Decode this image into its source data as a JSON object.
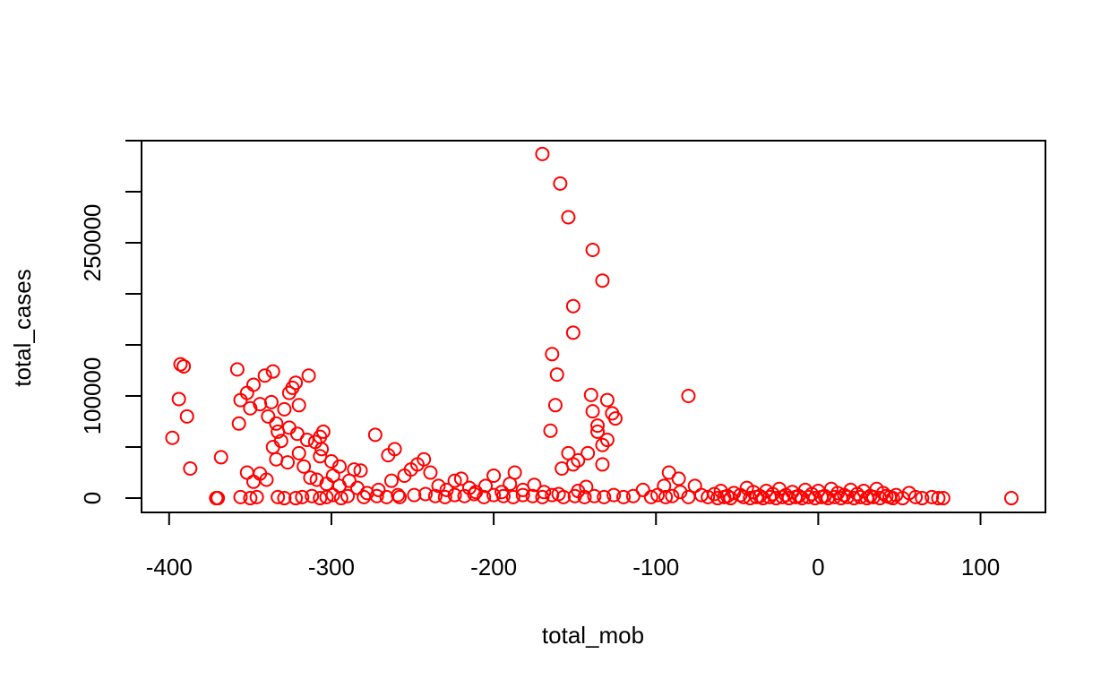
{
  "chart_data": {
    "type": "scatter",
    "title": "",
    "xlabel": "total_mob",
    "ylabel": "total_cases",
    "xlim": [
      -417,
      140
    ],
    "ylim": [
      -14000,
      350000
    ],
    "x_ticks": [
      -400,
      -300,
      -200,
      -100,
      0,
      100
    ],
    "x_tick_labels": [
      "-400",
      "-300",
      "-200",
      "-100",
      "0",
      "100"
    ],
    "y_ticks": [
      0,
      50000,
      100000,
      150000,
      200000,
      250000,
      300000,
      350000
    ],
    "y_tick_labels": [
      "0",
      "",
      "100000",
      "",
      "",
      "250000",
      "",
      ""
    ],
    "grid": false,
    "legend": "none",
    "marker": "open-circle",
    "point_color": "#ff0000",
    "points": [
      [
        -170,
        337000
      ],
      [
        -159,
        308000
      ],
      [
        -154,
        275000
      ],
      [
        -139,
        243000
      ],
      [
        -133,
        213000
      ],
      [
        -151,
        188000
      ],
      [
        -151,
        162000
      ],
      [
        -164,
        141000
      ],
      [
        -161,
        121000
      ],
      [
        -140,
        101000
      ],
      [
        -130,
        96000
      ],
      [
        -162,
        91000
      ],
      [
        -139,
        85000
      ],
      [
        -127,
        83000
      ],
      [
        -125,
        78000
      ],
      [
        -136,
        71000
      ],
      [
        -136,
        65000
      ],
      [
        -130,
        57000
      ],
      [
        -165,
        66000
      ],
      [
        -133,
        52000
      ],
      [
        -154,
        44000
      ],
      [
        -142,
        44000
      ],
      [
        -148,
        37000
      ],
      [
        -151,
        33000
      ],
      [
        -133,
        33000
      ],
      [
        -158,
        29000
      ],
      [
        -80,
        100000
      ],
      [
        -92,
        25000
      ],
      [
        -86,
        19000
      ],
      [
        -95,
        12000
      ],
      [
        -393,
        131000
      ],
      [
        -391,
        129000
      ],
      [
        -394,
        97000
      ],
      [
        -389,
        80000
      ],
      [
        -398,
        59000
      ],
      [
        -387,
        29000
      ],
      [
        -371,
        0
      ],
      [
        -370,
        0
      ],
      [
        -368,
        40000
      ],
      [
        -358,
        126000
      ],
      [
        -356,
        96000
      ],
      [
        -352,
        103000
      ],
      [
        -350,
        88000
      ],
      [
        -348,
        111000
      ],
      [
        -344,
        92000
      ],
      [
        -341,
        120000
      ],
      [
        -339,
        80000
      ],
      [
        -337,
        94000
      ],
      [
        -336,
        124000
      ],
      [
        -334,
        73000
      ],
      [
        -333,
        65000
      ],
      [
        -331,
        56000
      ],
      [
        -336,
        50000
      ],
      [
        -329,
        87000
      ],
      [
        -326,
        103000
      ],
      [
        -324,
        108000
      ],
      [
        -322,
        113000
      ],
      [
        -320,
        91000
      ],
      [
        -314,
        120000
      ],
      [
        -326,
        69000
      ],
      [
        -321,
        63000
      ],
      [
        -315,
        57000
      ],
      [
        -310,
        55000
      ],
      [
        -307,
        60000
      ],
      [
        -305,
        65000
      ],
      [
        -306,
        48000
      ],
      [
        -307,
        41000
      ],
      [
        -300,
        36000
      ],
      [
        -295,
        31000
      ],
      [
        -286,
        28000
      ],
      [
        -282,
        27000
      ],
      [
        -273,
        62000
      ],
      [
        -265,
        42000
      ],
      [
        -261,
        48000
      ],
      [
        -357,
        73000
      ],
      [
        -352,
        25000
      ],
      [
        -348,
        16000
      ],
      [
        -344,
        24000
      ],
      [
        -340,
        18000
      ],
      [
        -334,
        38000
      ],
      [
        -327,
        35000
      ],
      [
        -320,
        44000
      ],
      [
        -317,
        31000
      ],
      [
        -313,
        20000
      ],
      [
        -309,
        18000
      ],
      [
        -303,
        14000
      ],
      [
        -299,
        22000
      ],
      [
        -295,
        12000
      ],
      [
        -289,
        17000
      ],
      [
        -284,
        10000
      ],
      [
        -278,
        5000
      ],
      [
        -271,
        8000
      ],
      [
        -263,
        17000
      ],
      [
        -259,
        3000
      ],
      [
        -255,
        22000
      ],
      [
        -251,
        28000
      ],
      [
        -247,
        33000
      ],
      [
        -243,
        38000
      ],
      [
        -239,
        25000
      ],
      [
        -234,
        12000
      ],
      [
        -229,
        8000
      ],
      [
        -224,
        17000
      ],
      [
        -220,
        19000
      ],
      [
        -215,
        10000
      ],
      [
        -211,
        6000
      ],
      [
        -205,
        12000
      ],
      [
        -200,
        22000
      ],
      [
        -195,
        6000
      ],
      [
        -190,
        14000
      ],
      [
        -187,
        25000
      ],
      [
        -182,
        8000
      ],
      [
        -175,
        13000
      ],
      [
        -169,
        6000
      ],
      [
        -160,
        4000
      ],
      [
        -148,
        7000
      ],
      [
        -143,
        11000
      ],
      [
        -356,
        1000
      ],
      [
        -350,
        0
      ],
      [
        -346,
        1000
      ],
      [
        -333,
        1000
      ],
      [
        -329,
        0
      ],
      [
        -322,
        0
      ],
      [
        -318,
        1000
      ],
      [
        -312,
        2000
      ],
      [
        -307,
        0
      ],
      [
        -303,
        1000
      ],
      [
        -299,
        3000
      ],
      [
        -294,
        0
      ],
      [
        -290,
        2000
      ],
      [
        -280,
        1000
      ],
      [
        -272,
        2000
      ],
      [
        -266,
        1000
      ],
      [
        -258,
        1000
      ],
      [
        -249,
        3000
      ],
      [
        -242,
        4000
      ],
      [
        -236,
        2000
      ],
      [
        -230,
        1000
      ],
      [
        -224,
        3000
      ],
      [
        -218,
        2000
      ],
      [
        -212,
        4000
      ],
      [
        -206,
        1000
      ],
      [
        -200,
        3000
      ],
      [
        -194,
        2000
      ],
      [
        -188,
        1000
      ],
      [
        -182,
        3000
      ],
      [
        -176,
        2000
      ],
      [
        -170,
        1000
      ],
      [
        -164,
        3000
      ],
      [
        -157,
        1000
      ],
      [
        -150,
        2000
      ],
      [
        -144,
        1000
      ],
      [
        -138,
        2000
      ],
      [
        -132,
        1000
      ],
      [
        -126,
        3000
      ],
      [
        -120,
        1000
      ],
      [
        -114,
        2000
      ],
      [
        -108,
        8000
      ],
      [
        -103,
        1000
      ],
      [
        -99,
        3000
      ],
      [
        -94,
        1000
      ],
      [
        -90,
        2000
      ],
      [
        -85,
        6000
      ],
      [
        -80,
        1000
      ],
      [
        -76,
        12000
      ],
      [
        -72,
        3000
      ],
      [
        -68,
        1000
      ],
      [
        -64,
        4000
      ],
      [
        -60,
        7000
      ],
      [
        -56,
        2000
      ],
      [
        -52,
        5000
      ],
      [
        -48,
        3000
      ],
      [
        -44,
        10000
      ],
      [
        -40,
        6000
      ],
      [
        -36,
        2000
      ],
      [
        -32,
        7000
      ],
      [
        -28,
        4000
      ],
      [
        -24,
        9000
      ],
      [
        -20,
        3000
      ],
      [
        -16,
        6000
      ],
      [
        -12,
        2000
      ],
      [
        -8,
        8000
      ],
      [
        -4,
        4000
      ],
      [
        0,
        7000
      ],
      [
        4,
        2000
      ],
      [
        8,
        9000
      ],
      [
        12,
        5000
      ],
      [
        16,
        3000
      ],
      [
        20,
        8000
      ],
      [
        24,
        4000
      ],
      [
        28,
        7000
      ],
      [
        32,
        2000
      ],
      [
        36,
        9000
      ],
      [
        40,
        5000
      ],
      [
        44,
        1000
      ],
      [
        48,
        3000
      ],
      [
        52,
        0
      ],
      [
        56,
        5000
      ],
      [
        60,
        1000
      ],
      [
        64,
        0
      ],
      [
        70,
        1000
      ],
      [
        74,
        0
      ],
      [
        77,
        0
      ],
      [
        119,
        0
      ],
      [
        -62,
        0
      ],
      [
        -58,
        1000
      ],
      [
        -54,
        0
      ],
      [
        -46,
        1000
      ],
      [
        -42,
        0
      ],
      [
        -38,
        1000
      ],
      [
        -34,
        0
      ],
      [
        -30,
        1000
      ],
      [
        -26,
        0
      ],
      [
        -22,
        1000
      ],
      [
        -18,
        0
      ],
      [
        -14,
        1000
      ],
      [
        -10,
        0
      ],
      [
        -6,
        1000
      ],
      [
        -2,
        0
      ],
      [
        2,
        1000
      ],
      [
        6,
        0
      ],
      [
        10,
        1000
      ],
      [
        14,
        0
      ],
      [
        18,
        1000
      ],
      [
        22,
        0
      ],
      [
        26,
        1000
      ],
      [
        30,
        0
      ],
      [
        34,
        1000
      ],
      [
        38,
        0
      ],
      [
        42,
        2000
      ],
      [
        46,
        0
      ]
    ]
  }
}
